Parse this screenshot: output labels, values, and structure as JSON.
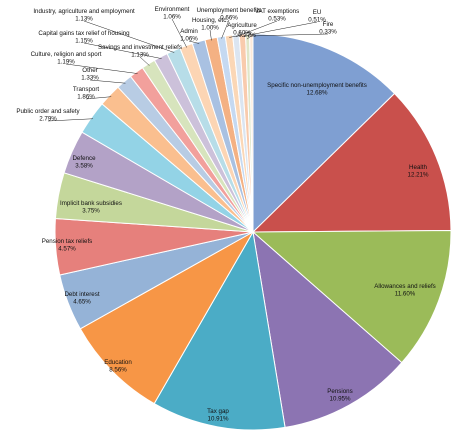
{
  "chart_data": {
    "type": "pie",
    "title": "",
    "legend": "none",
    "series": [
      {
        "slices": [
          {
            "label": "Specific non-unemployment benefits",
            "value": 12.68,
            "value_label": "12.68%",
            "color": "#7f9fd2"
          },
          {
            "label": "Health",
            "value": 12.21,
            "value_label": "12.21%",
            "color": "#c9504c"
          },
          {
            "label": "Allowances and reliefs",
            "value": 11.6,
            "value_label": "11.60%",
            "color": "#9bbb59"
          },
          {
            "label": "Pensions",
            "value": 10.95,
            "value_label": "10.95%",
            "color": "#8c74b2"
          },
          {
            "label": "Tax gap",
            "value": 10.91,
            "value_label": "10.91%",
            "color": "#4bacc6"
          },
          {
            "label": "Education",
            "value": 8.56,
            "value_label": "8.56%",
            "color": "#f79646"
          },
          {
            "label": "Debt interest",
            "value": 4.65,
            "value_label": "4.65%",
            "color": "#95b3d7"
          },
          {
            "label": "Pension tax reliefs",
            "value": 4.57,
            "value_label": "4.57%",
            "color": "#e6807c"
          },
          {
            "label": "Implicit bank subsidies",
            "value": 3.75,
            "value_label": "3.75%",
            "color": "#c4d79b"
          },
          {
            "label": "Defence",
            "value": 3.58,
            "value_label": "3.58%",
            "color": "#b3a2c7"
          },
          {
            "label": "Public order and safety",
            "value": 2.79,
            "value_label": "2.79%",
            "color": "#93d3e6"
          },
          {
            "label": "Transport",
            "value": 1.86,
            "value_label": "1.86%",
            "color": "#fabf8f"
          },
          {
            "label": "Other",
            "value": 1.33,
            "value_label": "1.33%",
            "color": "#b8cce4"
          },
          {
            "label": "Culture, religion and sport",
            "value": 1.19,
            "value_label": "1.19%",
            "color": "#f2a09c"
          },
          {
            "label": "Savings and investment reliefs",
            "value": 1.13,
            "value_label": "1.13%",
            "color": "#d7e4bd"
          },
          {
            "label": "Capital gains tax relief of housing",
            "value": 1.15,
            "value_label": "1.15%",
            "color": "#ccc1da"
          },
          {
            "label": "Industry, agriculture and employment",
            "value": 1.13,
            "value_label": "1.13%",
            "color": "#b7dde8"
          },
          {
            "label": "Environment",
            "value": 1.06,
            "value_label": "1.06%",
            "color": "#fcd5b4"
          },
          {
            "label": "Admin",
            "value": 1.06,
            "value_label": "1.06%",
            "color": "#a9c1e2"
          },
          {
            "label": "Housing, etc.",
            "value": 1.0,
            "value_label": "1.00%",
            "color": "#f4b183"
          },
          {
            "label": "Unemployment benefits",
            "value": 0.66,
            "value_label": "0.66%",
            "color": "#c5d9f1"
          },
          {
            "label": "Agriculture",
            "value": 0.6,
            "value_label": "0.60%",
            "color": "#fbd7b6"
          },
          {
            "label": "VAT exemptions",
            "value": 0.53,
            "value_label": "0.53%",
            "color": "#dbe5f1"
          },
          {
            "label": "EU",
            "value": 0.51,
            "value_label": "0.51%",
            "color": "#f9cbad"
          },
          {
            "label": "Fire",
            "value": 0.33,
            "value_label": "0.33%",
            "color": "#e0e6c8"
          },
          {
            "label": "",
            "value": 0.27,
            "value_label": "0.27%",
            "color": "#fde9d9"
          }
        ]
      }
    ]
  }
}
